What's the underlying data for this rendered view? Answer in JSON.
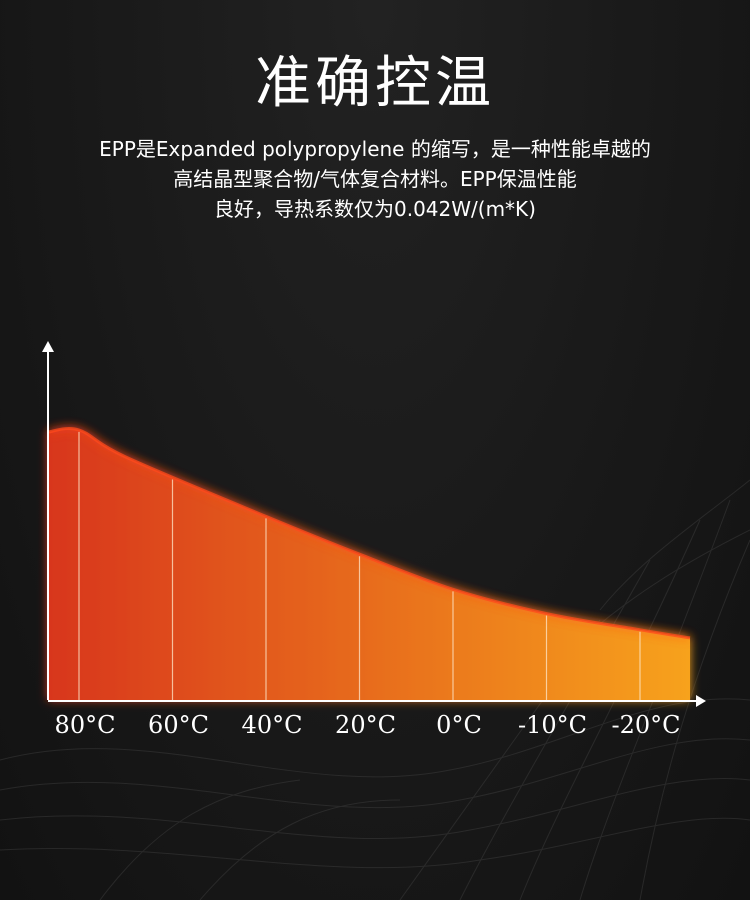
{
  "header": {
    "title": "准确控温",
    "description_lines": [
      "EPP是Expanded polypropylene 的缩写，是一种性能卓越的",
      "高结晶型聚合物/气体复合材料。EPP保温性能",
      "良好，导热系数仅为0.042W/(m*K)"
    ]
  },
  "colors": {
    "background": "#1b1b1b",
    "area_start": "#d8361a",
    "area_end": "#f7a21c",
    "glow": "#ff4a1a",
    "axis": "#ffffff"
  },
  "chart_data": {
    "type": "area",
    "categories": [
      "80°C",
      "60°C",
      "40°C",
      "20°C",
      "0°C",
      "-10°C",
      "-20°C"
    ],
    "curve": [
      {
        "x": 0,
        "y": 100
      },
      {
        "x": 0.5,
        "y": 90
      },
      {
        "x": 2,
        "y": 68
      },
      {
        "x": 3,
        "y": 54
      },
      {
        "x": 4,
        "y": 41
      },
      {
        "x": 5,
        "y": 32
      },
      {
        "x": 6,
        "y": 26
      },
      {
        "x": 6.5,
        "y": 23
      }
    ],
    "y_axis_visible": true,
    "y_tick_labels": false,
    "grid": "vertical-dividers",
    "legend": "none"
  }
}
